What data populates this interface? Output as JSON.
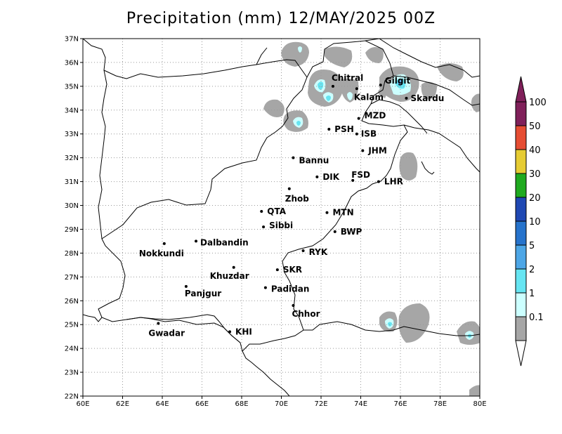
{
  "title": "Precipitation (mm) 12/MAY/2025 00Z",
  "lat_ticks": [
    "22N",
    "23N",
    "24N",
    "25N",
    "26N",
    "27N",
    "28N",
    "29N",
    "30N",
    "31N",
    "32N",
    "33N",
    "34N",
    "35N",
    "36N",
    "37N"
  ],
  "lon_ticks": [
    "60E",
    "62E",
    "64E",
    "66E",
    "68E",
    "70E",
    "72E",
    "74E",
    "76E",
    "78E",
    "80E"
  ],
  "cities": [
    {
      "name": "Chitral",
      "lon": 72.6,
      "lat": 35.0
    },
    {
      "name": "Gilgit",
      "lon": 75.0,
      "lat": 35.05
    },
    {
      "name": "Kalam",
      "lon": 73.8,
      "lat": 34.9
    },
    {
      "name": "Skardu",
      "lon": 76.3,
      "lat": 34.5
    },
    {
      "name": "MZD",
      "lon": 73.9,
      "lat": 33.65
    },
    {
      "name": "PSH",
      "lon": 72.4,
      "lat": 33.2
    },
    {
      "name": "ISB",
      "lon": 73.8,
      "lat": 33.0
    },
    {
      "name": "JHM",
      "lon": 74.1,
      "lat": 32.3
    },
    {
      "name": "Bannu",
      "lon": 70.6,
      "lat": 32.0
    },
    {
      "name": "DIK",
      "lon": 71.8,
      "lat": 31.2
    },
    {
      "name": "FSD",
      "lon": 73.6,
      "lat": 31.05
    },
    {
      "name": "LHR",
      "lon": 74.9,
      "lat": 31.0
    },
    {
      "name": "Zhob",
      "lon": 70.4,
      "lat": 30.7
    },
    {
      "name": "QTA",
      "lon": 69.0,
      "lat": 29.75
    },
    {
      "name": "MTN",
      "lon": 72.3,
      "lat": 29.7
    },
    {
      "name": "Sibbi",
      "lon": 69.1,
      "lat": 29.1
    },
    {
      "name": "BWP",
      "lon": 72.7,
      "lat": 28.9
    },
    {
      "name": "Dalbandin",
      "lon": 65.7,
      "lat": 28.5
    },
    {
      "name": "Nokkundi",
      "lon": 64.1,
      "lat": 28.4
    },
    {
      "name": "RYK",
      "lon": 71.1,
      "lat": 28.1
    },
    {
      "name": "SKR",
      "lon": 69.8,
      "lat": 27.3
    },
    {
      "name": "Khuzdar",
      "lon": 67.6,
      "lat": 27.4
    },
    {
      "name": "Panjgur",
      "lon": 65.2,
      "lat": 26.6
    },
    {
      "name": "Padidan",
      "lon": 69.2,
      "lat": 26.55
    },
    {
      "name": "Chhor",
      "lon": 70.6,
      "lat": 25.8
    },
    {
      "name": "KHI",
      "lon": 67.4,
      "lat": 24.7
    },
    {
      "name": "Gwadar",
      "lon": 63.8,
      "lat": 25.05
    }
  ],
  "colorbar": {
    "labels": [
      "0.1",
      "1",
      "2",
      "5",
      "10",
      "20",
      "30",
      "40",
      "50",
      "100"
    ],
    "colors": [
      "#a6a6a6",
      "#ccffff",
      "#66e5f2",
      "#4da6e6",
      "#2673cc",
      "#1f48b3",
      "#1faa1f",
      "#e6cc33",
      "#e64d33",
      "#80205a"
    ],
    "top_color": "#80205a",
    "bottom_color": "#ffffff"
  }
}
